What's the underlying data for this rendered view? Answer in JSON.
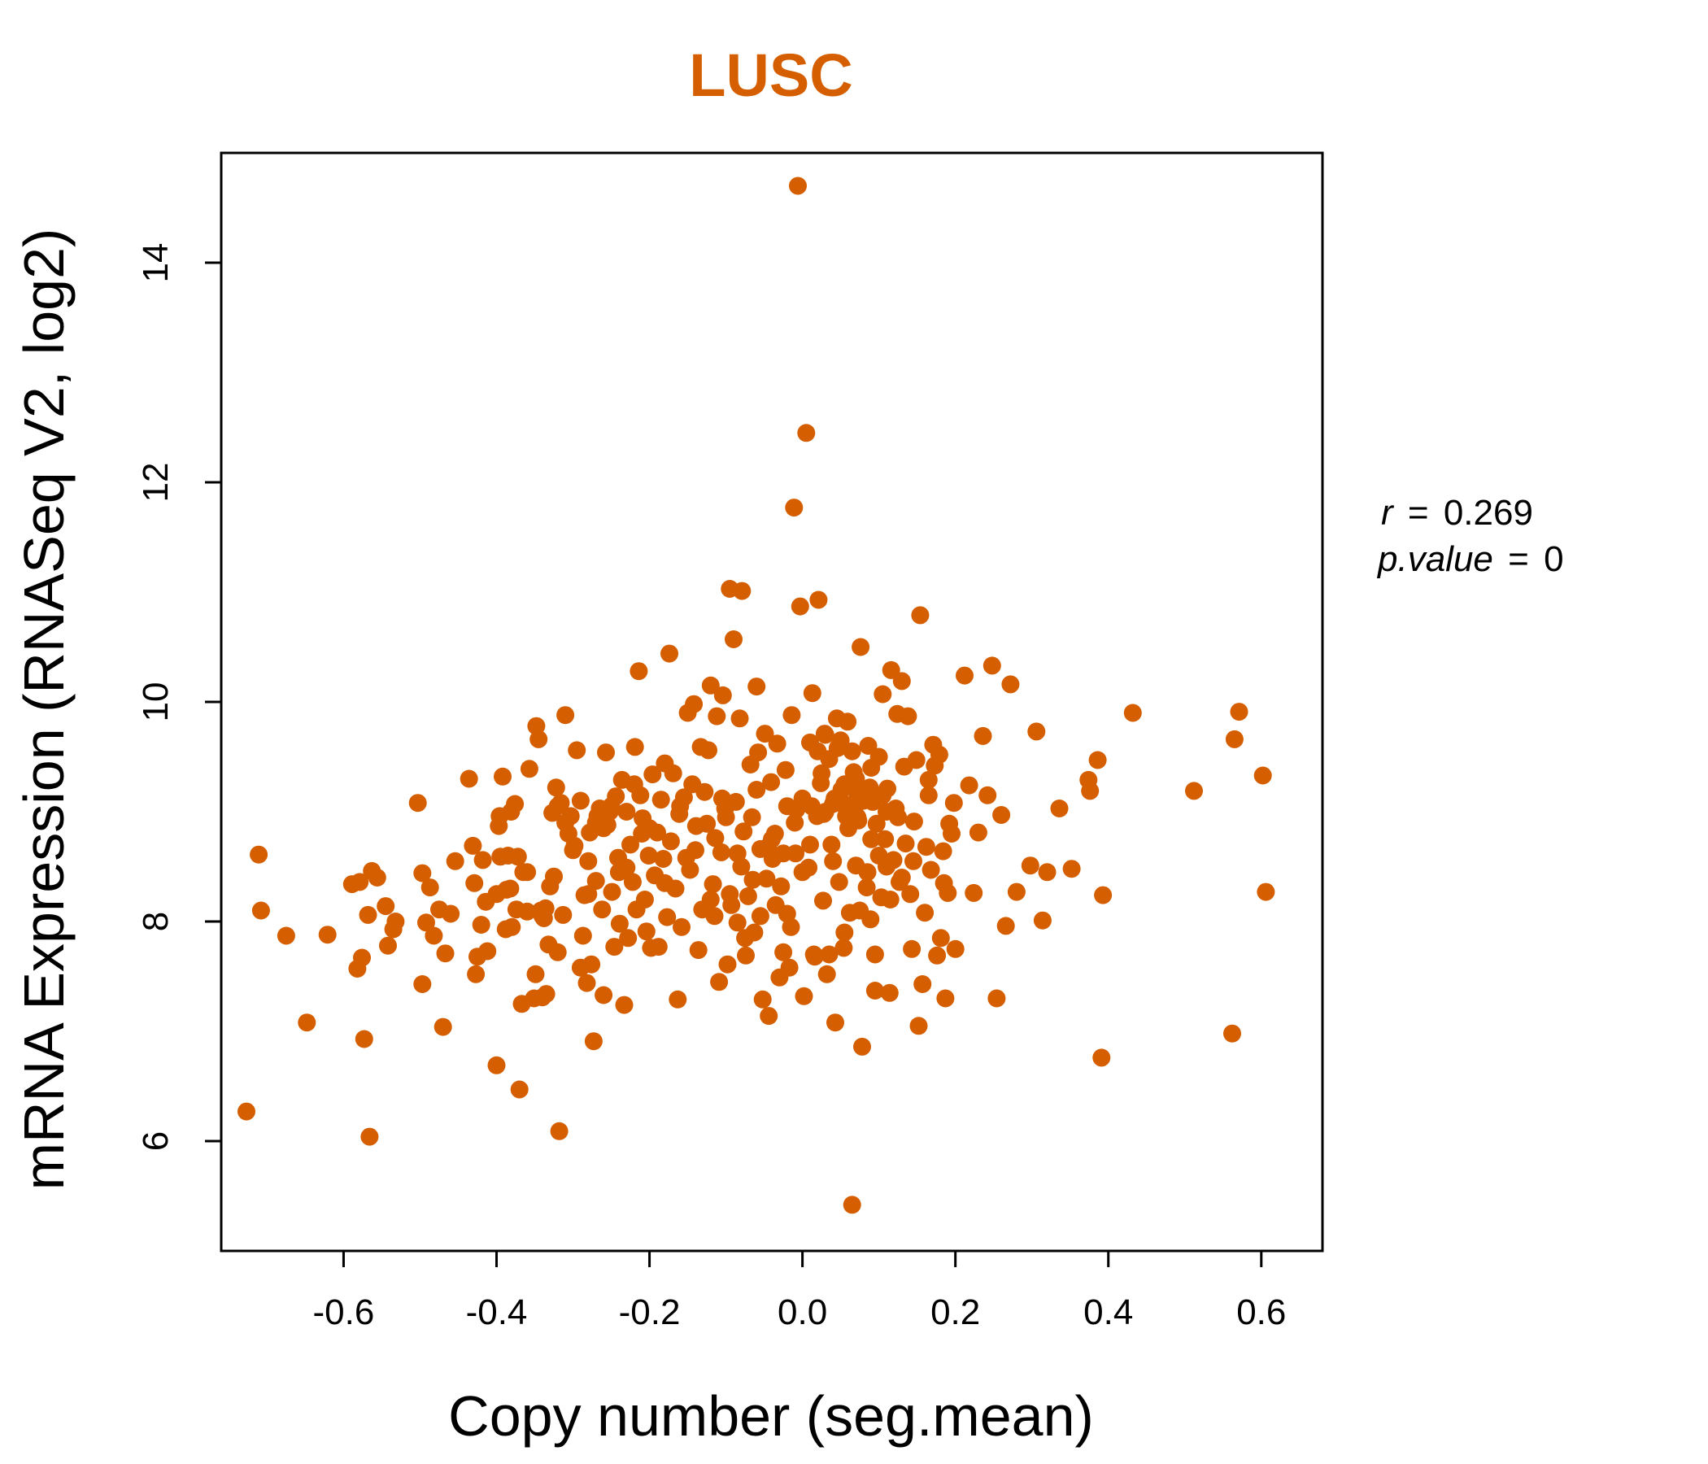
{
  "chart_data": {
    "type": "scatter",
    "title": "LUSC",
    "xlabel": "Copy number (seg.mean)",
    "ylabel": "mRNA Expression (RNASeq V2, log2)",
    "xlim": [
      -0.76,
      0.68
    ],
    "ylim": [
      5.0,
      15.0
    ],
    "x_ticks": [
      -0.6,
      -0.4,
      -0.2,
      0.0,
      0.2,
      0.4,
      0.6
    ],
    "x_tick_labels": [
      "-0.6",
      "-0.4",
      "-0.2",
      "0.0",
      "0.2",
      "0.4",
      "0.6"
    ],
    "y_ticks": [
      6,
      8,
      10,
      12,
      14
    ],
    "y_tick_labels": [
      "6",
      "8",
      "10",
      "12",
      "14"
    ],
    "grid": false,
    "color": "#D55E00",
    "annotation": {
      "r_label": "r",
      "r_eq": "=",
      "r_value": "0.269",
      "p_label": "p.value",
      "p_eq": "=",
      "p_value": "0"
    },
    "points": [
      [
        -0.727,
        6.27
      ],
      [
        -0.711,
        8.61
      ],
      [
        -0.708,
        8.1
      ],
      [
        -0.675,
        7.87
      ],
      [
        -0.648,
        7.08
      ],
      [
        -0.621,
        7.88
      ],
      [
        -0.589,
        8.34
      ],
      [
        -0.582,
        7.57
      ],
      [
        -0.579,
        8.36
      ],
      [
        -0.576,
        7.67
      ],
      [
        -0.573,
        6.93
      ],
      [
        -0.568,
        8.06
      ],
      [
        -0.566,
        6.04
      ],
      [
        -0.563,
        8.46
      ],
      [
        -0.556,
        8.4
      ],
      [
        -0.545,
        8.14
      ],
      [
        -0.542,
        7.78
      ],
      [
        -0.535,
        7.93
      ],
      [
        -0.532,
        8.0
      ],
      [
        -0.503,
        9.08
      ],
      [
        -0.497,
        8.44
      ],
      [
        -0.497,
        7.43
      ],
      [
        -0.492,
        7.99
      ],
      [
        -0.487,
        8.31
      ],
      [
        -0.482,
        7.87
      ],
      [
        -0.475,
        8.11
      ],
      [
        -0.47,
        7.04
      ],
      [
        -0.467,
        7.71
      ],
      [
        -0.46,
        8.07
      ],
      [
        -0.454,
        8.55
      ],
      [
        -0.436,
        9.3
      ],
      [
        -0.431,
        8.69
      ],
      [
        -0.429,
        8.35
      ],
      [
        -0.427,
        7.52
      ],
      [
        -0.425,
        7.68
      ],
      [
        -0.42,
        7.97
      ],
      [
        -0.418,
        8.56
      ],
      [
        -0.414,
        8.18
      ],
      [
        -0.412,
        7.73
      ],
      [
        -0.4,
        6.69
      ],
      [
        -0.397,
        8.87
      ],
      [
        -0.396,
        8.96
      ],
      [
        -0.395,
        8.59
      ],
      [
        -0.392,
        9.32
      ],
      [
        -0.388,
        7.93
      ],
      [
        -0.387,
        8.29
      ],
      [
        -0.385,
        8.6
      ],
      [
        -0.382,
        8.3
      ],
      [
        -0.381,
        9.0
      ],
      [
        -0.376,
        9.07
      ],
      [
        -0.374,
        8.11
      ],
      [
        -0.372,
        8.59
      ],
      [
        -0.37,
        6.47
      ],
      [
        -0.367,
        7.25
      ],
      [
        -0.365,
        8.45
      ],
      [
        -0.36,
        8.09
      ],
      [
        -0.357,
        9.39
      ],
      [
        -0.351,
        7.3
      ],
      [
        -0.349,
        7.52
      ],
      [
        -0.348,
        9.78
      ],
      [
        -0.345,
        9.66
      ],
      [
        -0.342,
        8.1
      ],
      [
        -0.34,
        7.31
      ],
      [
        -0.338,
        8.03
      ],
      [
        -0.336,
        8.12
      ],
      [
        -0.335,
        7.34
      ],
      [
        -0.332,
        7.79
      ],
      [
        -0.33,
        8.32
      ],
      [
        -0.327,
        8.99
      ],
      [
        -0.325,
        8.41
      ],
      [
        -0.322,
        9.22
      ],
      [
        -0.32,
        7.72
      ],
      [
        -0.318,
        6.09
      ],
      [
        -0.316,
        9.08
      ],
      [
        -0.313,
        8.06
      ],
      [
        -0.31,
        9.88
      ],
      [
        -0.306,
        8.8
      ],
      [
        -0.303,
        8.96
      ],
      [
        -0.298,
        8.69
      ],
      [
        -0.295,
        9.56
      ],
      [
        -0.29,
        7.58
      ],
      [
        -0.287,
        7.87
      ],
      [
        -0.285,
        8.24
      ],
      [
        -0.282,
        7.44
      ],
      [
        -0.28,
        8.55
      ],
      [
        -0.278,
        8.81
      ],
      [
        -0.276,
        7.61
      ],
      [
        -0.273,
        6.91
      ],
      [
        -0.27,
        8.37
      ],
      [
        -0.268,
        8.96
      ],
      [
        -0.265,
        9.03
      ],
      [
        -0.262,
        8.11
      ],
      [
        -0.26,
        7.33
      ],
      [
        -0.257,
        9.54
      ],
      [
        -0.255,
        8.88
      ],
      [
        -0.252,
        9.0
      ],
      [
        -0.249,
        8.27
      ],
      [
        -0.246,
        7.77
      ],
      [
        -0.244,
        9.14
      ],
      [
        -0.241,
        8.58
      ],
      [
        -0.239,
        7.98
      ],
      [
        -0.236,
        9.29
      ],
      [
        -0.233,
        7.24
      ],
      [
        -0.23,
        8.49
      ],
      [
        -0.228,
        7.85
      ],
      [
        -0.225,
        8.7
      ],
      [
        -0.222,
        8.36
      ],
      [
        -0.219,
        9.59
      ],
      [
        -0.217,
        8.11
      ],
      [
        -0.214,
        10.28
      ],
      [
        -0.212,
        9.15
      ],
      [
        -0.209,
        8.94
      ],
      [
        -0.206,
        8.2
      ],
      [
        -0.204,
        7.91
      ],
      [
        -0.201,
        8.6
      ],
      [
        -0.198,
        7.76
      ],
      [
        -0.196,
        9.34
      ],
      [
        -0.193,
        8.42
      ],
      [
        -0.19,
        8.81
      ],
      [
        -0.188,
        7.77
      ],
      [
        -0.185,
        9.11
      ],
      [
        -0.182,
        8.57
      ],
      [
        -0.18,
        9.44
      ],
      [
        -0.177,
        8.04
      ],
      [
        -0.174,
        10.44
      ],
      [
        -0.172,
        8.73
      ],
      [
        -0.169,
        9.35
      ],
      [
        -0.166,
        8.3
      ],
      [
        -0.163,
        7.29
      ],
      [
        -0.161,
        8.98
      ],
      [
        -0.158,
        7.95
      ],
      [
        -0.155,
        9.13
      ],
      [
        -0.152,
        8.58
      ],
      [
        -0.15,
        9.9
      ],
      [
        -0.147,
        8.47
      ],
      [
        -0.144,
        9.25
      ],
      [
        -0.142,
        9.98
      ],
      [
        -0.139,
        8.87
      ],
      [
        -0.136,
        7.74
      ],
      [
        -0.133,
        9.59
      ],
      [
        -0.131,
        8.11
      ],
      [
        -0.128,
        9.18
      ],
      [
        -0.125,
        8.89
      ],
      [
        -0.123,
        9.56
      ],
      [
        -0.12,
        10.15
      ],
      [
        -0.117,
        8.34
      ],
      [
        -0.114,
        8.76
      ],
      [
        -0.112,
        9.87
      ],
      [
        -0.109,
        7.45
      ],
      [
        -0.106,
        8.63
      ],
      [
        -0.104,
        10.06
      ],
      [
        -0.101,
        9.03
      ],
      [
        -0.098,
        7.61
      ],
      [
        -0.095,
        11.03
      ],
      [
        -0.093,
        8.15
      ],
      [
        -0.09,
        10.57
      ],
      [
        -0.087,
        9.09
      ],
      [
        -0.085,
        7.99
      ],
      [
        -0.082,
        9.85
      ],
      [
        -0.079,
        11.01
      ],
      [
        -0.077,
        8.82
      ],
      [
        -0.074,
        7.69
      ],
      [
        -0.071,
        8.23
      ],
      [
        -0.068,
        9.43
      ],
      [
        -0.066,
        8.95
      ],
      [
        -0.063,
        7.9
      ],
      [
        -0.06,
        10.14
      ],
      [
        -0.058,
        9.54
      ],
      [
        -0.055,
        8.66
      ],
      [
        -0.052,
        7.29
      ],
      [
        -0.049,
        9.71
      ],
      [
        -0.047,
        8.39
      ],
      [
        -0.044,
        7.14
      ],
      [
        -0.041,
        9.27
      ],
      [
        -0.039,
        8.57
      ],
      [
        -0.036,
        8.8
      ],
      [
        -0.033,
        9.62
      ],
      [
        -0.03,
        7.49
      ],
      [
        -0.028,
        8.32
      ],
      [
        -0.025,
        7.72
      ],
      [
        -0.022,
        9.38
      ],
      [
        -0.02,
        8.07
      ],
      [
        -0.017,
        7.58
      ],
      [
        -0.014,
        9.88
      ],
      [
        -0.011,
        11.77
      ],
      [
        -0.009,
        8.62
      ],
      [
        -0.006,
        14.7
      ],
      [
        -0.003,
        10.87
      ],
      [
        0.0,
        9.12
      ],
      [
        0.002,
        7.32
      ],
      [
        0.005,
        12.45
      ],
      [
        0.008,
        8.49
      ],
      [
        0.01,
        9.63
      ],
      [
        0.013,
        10.08
      ],
      [
        0.016,
        7.68
      ],
      [
        0.019,
        8.96
      ],
      [
        0.021,
        10.93
      ],
      [
        0.024,
        9.26
      ],
      [
        0.027,
        8.19
      ],
      [
        0.029,
        9.71
      ],
      [
        0.032,
        7.52
      ],
      [
        0.035,
        9.48
      ],
      [
        0.038,
        8.7
      ],
      [
        0.04,
        9.07
      ],
      [
        0.043,
        7.08
      ],
      [
        0.046,
        9.58
      ],
      [
        0.048,
        8.36
      ],
      [
        0.051,
        9.2
      ],
      [
        0.054,
        7.76
      ],
      [
        0.057,
        8.96
      ],
      [
        0.059,
        9.82
      ],
      [
        0.062,
        8.08
      ],
      [
        0.065,
        5.42
      ],
      [
        0.067,
        9.36
      ],
      [
        0.07,
        8.51
      ],
      [
        0.073,
        8.92
      ],
      [
        0.076,
        10.5
      ],
      [
        0.078,
        6.86
      ],
      [
        0.081,
        9.16
      ],
      [
        0.084,
        8.31
      ],
      [
        0.086,
        9.6
      ],
      [
        0.089,
        8.02
      ],
      [
        0.092,
        9.09
      ],
      [
        0.095,
        7.37
      ],
      [
        0.097,
        8.89
      ],
      [
        0.1,
        9.5
      ],
      [
        0.103,
        8.22
      ],
      [
        0.105,
        10.07
      ],
      [
        0.108,
        8.75
      ],
      [
        0.111,
        9.21
      ],
      [
        0.114,
        7.35
      ],
      [
        0.116,
        10.29
      ],
      [
        0.119,
        8.56
      ],
      [
        0.122,
        9.03
      ],
      [
        0.124,
        9.89
      ],
      [
        0.127,
        8.36
      ],
      [
        0.13,
        10.19
      ],
      [
        0.133,
        9.41
      ],
      [
        0.135,
        8.71
      ],
      [
        0.138,
        9.87
      ],
      [
        0.141,
        8.25
      ],
      [
        0.143,
        7.75
      ],
      [
        0.146,
        8.91
      ],
      [
        0.149,
        9.47
      ],
      [
        0.152,
        7.05
      ],
      [
        0.154,
        10.79
      ],
      [
        0.157,
        7.43
      ],
      [
        0.16,
        8.08
      ],
      [
        0.162,
        8.68
      ],
      [
        0.165,
        9.29
      ],
      [
        0.168,
        8.47
      ],
      [
        0.171,
        9.61
      ],
      [
        0.173,
        9.42
      ],
      [
        0.176,
        7.69
      ],
      [
        0.179,
        9.52
      ],
      [
        0.181,
        7.85
      ],
      [
        0.184,
        8.64
      ],
      [
        0.187,
        7.3
      ],
      [
        0.19,
        8.26
      ],
      [
        0.192,
        8.89
      ],
      [
        0.195,
        8.8
      ],
      [
        0.198,
        9.08
      ],
      [
        0.2,
        7.75
      ],
      [
        0.212,
        10.24
      ],
      [
        0.218,
        9.24
      ],
      [
        0.224,
        8.26
      ],
      [
        0.23,
        8.81
      ],
      [
        0.236,
        9.69
      ],
      [
        0.242,
        9.15
      ],
      [
        0.248,
        10.33
      ],
      [
        0.254,
        7.3
      ],
      [
        0.26,
        8.97
      ],
      [
        0.266,
        7.96
      ],
      [
        0.272,
        10.16
      ],
      [
        0.28,
        8.27
      ],
      [
        0.298,
        8.51
      ],
      [
        0.306,
        9.73
      ],
      [
        0.314,
        8.01
      ],
      [
        0.32,
        8.45
      ],
      [
        0.336,
        9.03
      ],
      [
        0.352,
        8.48
      ],
      [
        0.374,
        9.29
      ],
      [
        0.376,
        9.19
      ],
      [
        0.386,
        9.47
      ],
      [
        0.391,
        6.76
      ],
      [
        0.393,
        8.24
      ],
      [
        0.432,
        9.9
      ],
      [
        0.512,
        9.19
      ],
      [
        0.562,
        6.98
      ],
      [
        0.565,
        9.66
      ],
      [
        0.571,
        9.91
      ],
      [
        0.602,
        9.33
      ],
      [
        0.606,
        8.27
      ],
      [
        0.02,
        9.55
      ],
      [
        0.03,
        9.7
      ],
      [
        0.05,
        9.65
      ],
      [
        0.07,
        9.3
      ],
      [
        0.09,
        9.4
      ],
      [
        0.11,
        9.0
      ],
      [
        -0.01,
        8.9
      ],
      [
        0.01,
        8.7
      ],
      [
        0.04,
        8.55
      ],
      [
        0.06,
        8.85
      ],
      [
        0.08,
        9.1
      ],
      [
        0.1,
        8.6
      ],
      [
        -0.02,
        9.05
      ],
      [
        -0.04,
        8.75
      ],
      [
        0.0,
        8.45
      ],
      [
        0.025,
        9.35
      ],
      [
        0.045,
        9.85
      ],
      [
        0.065,
        9.55
      ],
      [
        0.085,
        8.45
      ],
      [
        0.105,
        9.15
      ],
      [
        0.125,
        8.95
      ],
      [
        0.145,
        8.55
      ],
      [
        0.165,
        9.15
      ],
      [
        0.185,
        8.35
      ],
      [
        -0.06,
        9.2
      ],
      [
        -0.08,
        8.5
      ],
      [
        -0.1,
        8.95
      ],
      [
        -0.12,
        8.2
      ],
      [
        -0.14,
        8.65
      ],
      [
        -0.16,
        9.05
      ],
      [
        -0.18,
        8.35
      ],
      [
        -0.2,
        8.85
      ],
      [
        -0.22,
        9.25
      ],
      [
        -0.24,
        8.45
      ],
      [
        -0.26,
        8.85
      ],
      [
        -0.28,
        8.25
      ],
      [
        -0.3,
        8.65
      ],
      [
        -0.32,
        9.05
      ],
      [
        -0.34,
        8.05
      ],
      [
        -0.36,
        8.45
      ],
      [
        -0.38,
        7.95
      ],
      [
        -0.4,
        8.25
      ],
      [
        0.015,
        7.7
      ],
      [
        0.035,
        7.7
      ],
      [
        0.055,
        7.9
      ],
      [
        0.075,
        8.1
      ],
      [
        0.095,
        7.7
      ],
      [
        0.115,
        8.2
      ],
      [
        -0.015,
        7.95
      ],
      [
        -0.035,
        8.15
      ],
      [
        -0.055,
        8.05
      ],
      [
        -0.075,
        7.85
      ],
      [
        -0.095,
        8.25
      ],
      [
        -0.115,
        8.05
      ],
      [
        0.012,
        9.05
      ],
      [
        0.028,
        8.98
      ],
      [
        0.042,
        9.12
      ],
      [
        0.058,
        9.02
      ],
      [
        0.072,
        8.95
      ],
      [
        0.088,
        9.22
      ],
      [
        -0.008,
        9.02
      ],
      [
        -0.025,
        8.62
      ],
      [
        -0.045,
        8.68
      ],
      [
        -0.065,
        8.38
      ],
      [
        -0.085,
        8.62
      ],
      [
        -0.105,
        9.12
      ],
      [
        0.03,
        9.0
      ],
      [
        0.05,
        9.1
      ],
      [
        0.07,
        9.25
      ],
      [
        0.09,
        8.75
      ],
      [
        0.11,
        8.5
      ],
      [
        0.13,
        8.4
      ],
      [
        -0.23,
        9.0
      ],
      [
        -0.25,
        9.05
      ],
      [
        -0.27,
        8.9
      ],
      [
        -0.29,
        9.1
      ],
      [
        -0.31,
        8.9
      ],
      [
        -0.21,
        8.8
      ],
      [
        0.068,
        9.0
      ],
      [
        0.078,
        9.1
      ],
      [
        0.082,
        9.2
      ],
      [
        0.072,
        9.15
      ],
      [
        0.062,
        9.05
      ],
      [
        0.055,
        9.25
      ]
    ]
  }
}
